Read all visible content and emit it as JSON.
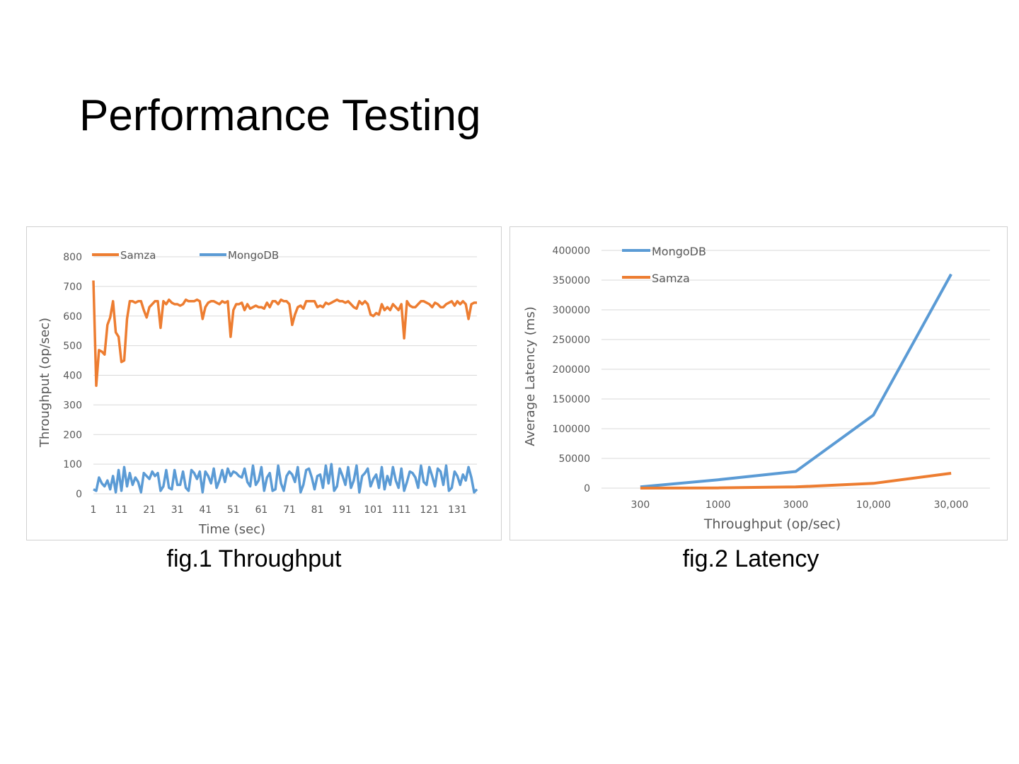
{
  "slide": {
    "title": "Performance Testing",
    "captions": [
      "fig.1 Throughput",
      "fig.2 Latency"
    ]
  },
  "colors": {
    "samza": "#ED7D31",
    "mongodb": "#5B9BD5",
    "grid": "#D9D9D9",
    "axis_text": "#595959"
  },
  "chart_data": [
    {
      "type": "line",
      "xlabel": "Time (sec)",
      "ylabel": "Throughput (op/sec)",
      "ylim": [
        0,
        800
      ],
      "yticks": [
        0,
        100,
        200,
        300,
        400,
        500,
        600,
        700,
        800
      ],
      "xlim": [
        1,
        138
      ],
      "xtick_labels": [
        "1",
        "11",
        "21",
        "31",
        "41",
        "51",
        "61",
        "71",
        "81",
        "91",
        "101",
        "111",
        "121",
        "131"
      ],
      "legend_position": "top-left",
      "series": [
        {
          "name": "Samza",
          "color": "#ED7D31",
          "values": [
            720,
            365,
            485,
            480,
            470,
            570,
            595,
            650,
            545,
            530,
            445,
            450,
            590,
            650,
            650,
            645,
            650,
            650,
            620,
            595,
            630,
            640,
            650,
            650,
            560,
            650,
            640,
            655,
            645,
            640,
            640,
            635,
            640,
            655,
            650,
            650,
            650,
            655,
            650,
            590,
            630,
            645,
            650,
            650,
            645,
            640,
            650,
            645,
            650,
            530,
            620,
            640,
            640,
            645,
            620,
            640,
            625,
            630,
            635,
            630,
            630,
            625,
            645,
            630,
            650,
            650,
            640,
            655,
            650,
            650,
            640,
            570,
            605,
            630,
            635,
            625,
            650,
            650,
            650,
            650,
            630,
            635,
            630,
            645,
            640,
            645,
            650,
            655,
            650,
            650,
            645,
            650,
            640,
            630,
            625,
            650,
            640,
            650,
            640,
            605,
            600,
            610,
            605,
            640,
            620,
            630,
            620,
            640,
            630,
            620,
            640,
            525,
            650,
            635,
            630,
            630,
            640,
            650,
            650,
            645,
            640,
            630,
            645,
            640,
            630,
            630,
            640,
            645,
            650,
            635,
            650,
            640,
            650,
            640,
            590,
            640,
            645,
            645
          ]
        },
        {
          "name": "MongoDB",
          "color": "#5B9BD5",
          "values": [
            15,
            10,
            55,
            35,
            25,
            45,
            15,
            60,
            5,
            80,
            10,
            90,
            25,
            70,
            30,
            55,
            40,
            5,
            70,
            60,
            50,
            75,
            60,
            70,
            10,
            25,
            80,
            20,
            15,
            80,
            30,
            30,
            75,
            20,
            10,
            80,
            70,
            50,
            75,
            5,
            75,
            60,
            35,
            85,
            20,
            45,
            80,
            40,
            85,
            60,
            75,
            70,
            60,
            55,
            85,
            40,
            25,
            95,
            30,
            45,
            90,
            10,
            55,
            70,
            10,
            15,
            95,
            35,
            10,
            60,
            75,
            65,
            40,
            90,
            5,
            30,
            80,
            85,
            55,
            15,
            60,
            65,
            20,
            95,
            35,
            100,
            10,
            25,
            85,
            60,
            30,
            90,
            20,
            45,
            95,
            5,
            60,
            70,
            85,
            25,
            50,
            65,
            20,
            90,
            15,
            60,
            30,
            90,
            45,
            20,
            85,
            10,
            40,
            75,
            70,
            55,
            20,
            95,
            40,
            30,
            90,
            60,
            25,
            85,
            75,
            30,
            95,
            10,
            20,
            75,
            60,
            30,
            65,
            45,
            90,
            55,
            5,
            15
          ]
        }
      ]
    },
    {
      "type": "line",
      "xlabel": "Throughput (op/sec)",
      "ylabel": "Average Latency (ms)",
      "ylim": [
        0,
        400000
      ],
      "yticks": [
        0,
        50000,
        100000,
        150000,
        200000,
        250000,
        300000,
        350000,
        400000
      ],
      "categories": [
        "300",
        "1000",
        "3000",
        "10,000",
        "30,000"
      ],
      "legend_position": "top-left",
      "series": [
        {
          "name": "MongoDB",
          "color": "#5B9BD5",
          "values": [
            2000,
            14000,
            28000,
            123000,
            360000
          ]
        },
        {
          "name": "Samza",
          "color": "#ED7D31",
          "values": [
            0,
            300,
            2000,
            8000,
            25000
          ]
        }
      ]
    }
  ]
}
